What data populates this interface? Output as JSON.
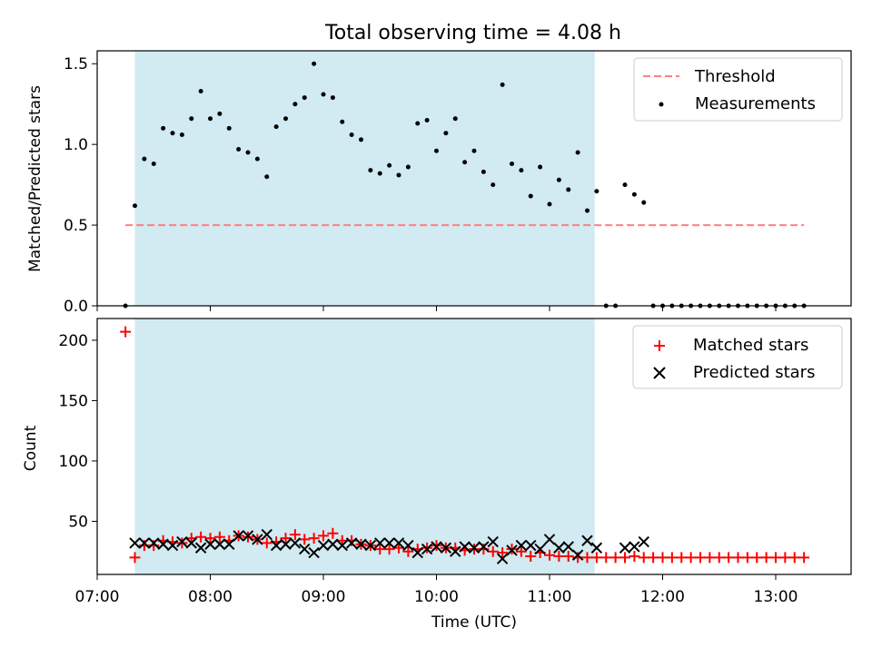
{
  "title": "Total observing time = 4.08 h",
  "colors": {
    "shade": "#add8e6",
    "threshold": "#ff7f7f",
    "measurements": "#000000",
    "matched": "#ff0000",
    "predicted": "#000000"
  },
  "chart_data": [
    {
      "type": "scatter",
      "ylabel": "Matched/Predicted stars",
      "ylim": [
        0,
        1.58
      ],
      "yticks": [
        "0.0",
        "0.5",
        "1.0",
        "1.5"
      ],
      "xlim": [
        "07:00",
        "13:40"
      ],
      "shaded_interval": [
        "07:20",
        "11:24"
      ],
      "threshold": {
        "name": "Threshold",
        "y": 0.5,
        "x": [
          "07:15",
          "13:15"
        ]
      },
      "legend_position": "top-right",
      "series": [
        {
          "name": "Measurements",
          "x": [
            "07:15",
            "07:20",
            "07:25",
            "07:30",
            "07:35",
            "07:40",
            "07:45",
            "07:50",
            "07:55",
            "08:00",
            "08:05",
            "08:10",
            "08:15",
            "08:20",
            "08:25",
            "08:30",
            "08:35",
            "08:40",
            "08:45",
            "08:50",
            "08:55",
            "09:00",
            "09:05",
            "09:10",
            "09:15",
            "09:20",
            "09:25",
            "09:30",
            "09:35",
            "09:40",
            "09:45",
            "09:50",
            "09:55",
            "10:00",
            "10:05",
            "10:10",
            "10:15",
            "10:20",
            "10:25",
            "10:30",
            "10:35",
            "10:40",
            "10:45",
            "10:50",
            "10:55",
            "11:00",
            "11:05",
            "11:10",
            "11:15",
            "11:20",
            "11:25",
            "11:30",
            "11:35",
            "11:40",
            "11:45",
            "11:50",
            "11:55",
            "12:00",
            "12:05",
            "12:10",
            "12:15",
            "12:20",
            "12:25",
            "12:30",
            "12:35",
            "12:40",
            "12:45",
            "12:50",
            "12:55",
            "13:00",
            "13:05",
            "13:10",
            "13:15"
          ],
          "values": [
            0.0,
            0.62,
            0.91,
            0.88,
            1.1,
            1.07,
            1.06,
            1.16,
            1.33,
            1.16,
            1.19,
            1.1,
            0.97,
            0.95,
            0.91,
            0.8,
            1.11,
            1.16,
            1.25,
            1.29,
            1.5,
            1.31,
            1.29,
            1.14,
            1.06,
            1.03,
            0.84,
            0.82,
            0.87,
            0.81,
            0.86,
            1.13,
            1.15,
            0.96,
            1.07,
            1.16,
            0.89,
            0.96,
            0.83,
            0.75,
            1.37,
            0.88,
            0.84,
            0.68,
            0.86,
            0.63,
            0.78,
            0.72,
            0.95,
            0.59,
            0.71,
            0.0,
            0.0,
            0.75,
            0.69,
            0.64,
            0.0,
            0.0,
            0.0,
            0.0,
            0.0,
            0.0,
            0.0,
            0.0,
            0.0,
            0.0,
            0.0,
            0.0,
            0.0,
            0.0,
            0.0,
            0.0,
            0.0
          ]
        }
      ]
    },
    {
      "type": "scatter",
      "xlabel": "Time (UTC)",
      "ylabel": "Count",
      "ylim": [
        6,
        218
      ],
      "yticks": [
        "50",
        "100",
        "150",
        "200"
      ],
      "xticks": [
        "07:00",
        "08:00",
        "09:00",
        "10:00",
        "11:00",
        "12:00",
        "13:00"
      ],
      "xlim": [
        "07:00",
        "13:40"
      ],
      "shaded_interval": [
        "07:20",
        "11:24"
      ],
      "legend_position": "top-right",
      "series": [
        {
          "name": "Matched stars",
          "x": [
            "07:15",
            "07:20",
            "07:25",
            "07:30",
            "07:35",
            "07:40",
            "07:45",
            "07:50",
            "07:55",
            "08:00",
            "08:05",
            "08:10",
            "08:15",
            "08:20",
            "08:25",
            "08:30",
            "08:35",
            "08:40",
            "08:45",
            "08:50",
            "08:55",
            "09:00",
            "09:05",
            "09:10",
            "09:15",
            "09:20",
            "09:25",
            "09:30",
            "09:35",
            "09:40",
            "09:45",
            "09:50",
            "09:55",
            "10:00",
            "10:05",
            "10:10",
            "10:15",
            "10:20",
            "10:25",
            "10:30",
            "10:35",
            "10:40",
            "10:45",
            "10:50",
            "10:55",
            "11:00",
            "11:05",
            "11:10",
            "11:15",
            "11:20",
            "11:25",
            "11:30",
            "11:35",
            "11:40",
            "11:45",
            "11:50",
            "11:55",
            "12:00",
            "12:05",
            "12:10",
            "12:15",
            "12:20",
            "12:25",
            "12:30",
            "12:35",
            "12:40",
            "12:45",
            "12:50",
            "12:55",
            "13:00",
            "13:05",
            "13:10",
            "13:15"
          ],
          "values": [
            207,
            20,
            30,
            30,
            34,
            33,
            32,
            36,
            37,
            36,
            37,
            34,
            38,
            37,
            35,
            32,
            33,
            36,
            39,
            35,
            36,
            38,
            40,
            34,
            34,
            31,
            30,
            27,
            27,
            28,
            25,
            27,
            28,
            30,
            28,
            28,
            26,
            27,
            27,
            25,
            24,
            27,
            25,
            21,
            24,
            22,
            21,
            21,
            20,
            20,
            20,
            20,
            20,
            20,
            21,
            20,
            20,
            20,
            20,
            20,
            20,
            20,
            20,
            20,
            20,
            20,
            20,
            20,
            20,
            20,
            20,
            20,
            20
          ]
        },
        {
          "name": "Predicted stars",
          "x": [
            "07:20",
            "07:25",
            "07:30",
            "07:35",
            "07:40",
            "07:45",
            "07:50",
            "07:55",
            "08:00",
            "08:05",
            "08:10",
            "08:15",
            "08:20",
            "08:25",
            "08:30",
            "08:35",
            "08:40",
            "08:45",
            "08:50",
            "08:55",
            "09:00",
            "09:05",
            "09:10",
            "09:15",
            "09:20",
            "09:25",
            "09:30",
            "09:35",
            "09:40",
            "09:45",
            "09:50",
            "09:55",
            "10:00",
            "10:05",
            "10:10",
            "10:15",
            "10:20",
            "10:25",
            "10:30",
            "10:35",
            "10:40",
            "10:45",
            "10:50",
            "10:55",
            "11:00",
            "11:05",
            "11:10",
            "11:15",
            "11:20",
            "11:25",
            "11:40",
            "11:45",
            "11:50"
          ],
          "values": [
            32,
            32,
            32,
            31,
            30,
            33,
            32,
            28,
            31,
            31,
            31,
            38,
            38,
            35,
            39,
            30,
            31,
            32,
            27,
            24,
            30,
            31,
            30,
            32,
            31,
            30,
            32,
            32,
            32,
            30,
            24,
            27,
            29,
            28,
            25,
            29,
            28,
            29,
            33,
            19,
            26,
            30,
            30,
            27,
            35,
            28,
            29,
            22,
            34,
            28,
            28,
            29,
            33
          ]
        }
      ]
    }
  ]
}
